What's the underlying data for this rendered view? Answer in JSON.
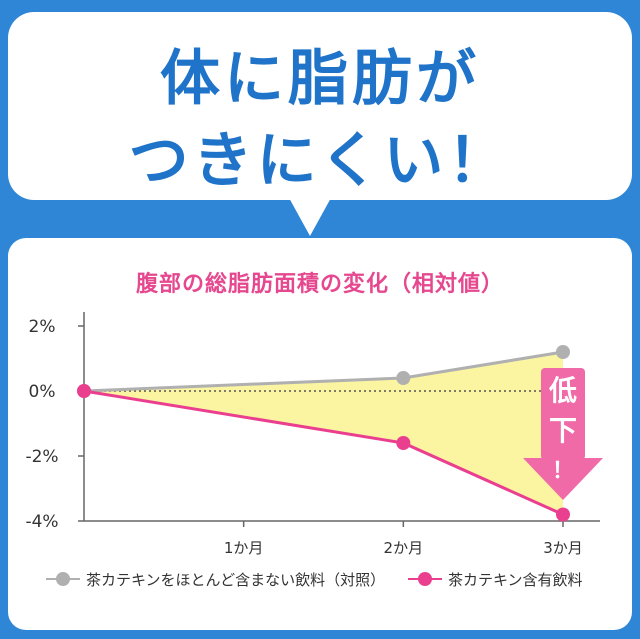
{
  "headline": {
    "line1": "体に脂肪が",
    "line2": "つきにくい！"
  },
  "chart_title": "腹部の総脂肪面積の変化（相対値）",
  "annotation": {
    "line1": "低",
    "line2": "下",
    "line3": "！"
  },
  "colors": {
    "control": "#b0b0b0",
    "catechin": "#ea3f8f",
    "fill": "#fbf4a1",
    "headline": "#1f73c9",
    "arrow": "#f06aa8"
  },
  "chart_data": {
    "type": "line",
    "title": "腹部の総脂肪面積の変化（相対値）",
    "x": [
      0,
      1,
      2,
      3
    ],
    "categories": [
      "",
      "1か月",
      "2か月",
      "3か月"
    ],
    "yticks": [
      "2%",
      "0%",
      "-2%",
      "-4%"
    ],
    "ytick_values": [
      2,
      0,
      -2,
      -4
    ],
    "ylim": [
      -4,
      2
    ],
    "series": [
      {
        "name": "茶カテキンをほとんど含まない飲料（対照）",
        "x": [
          0,
          2,
          3
        ],
        "values": [
          0,
          0.4,
          1.2
        ]
      },
      {
        "name": "茶カテキン含有飲料",
        "x": [
          0,
          2,
          3
        ],
        "values": [
          0,
          -1.6,
          -3.8
        ]
      }
    ],
    "zero_line": "dotted"
  }
}
